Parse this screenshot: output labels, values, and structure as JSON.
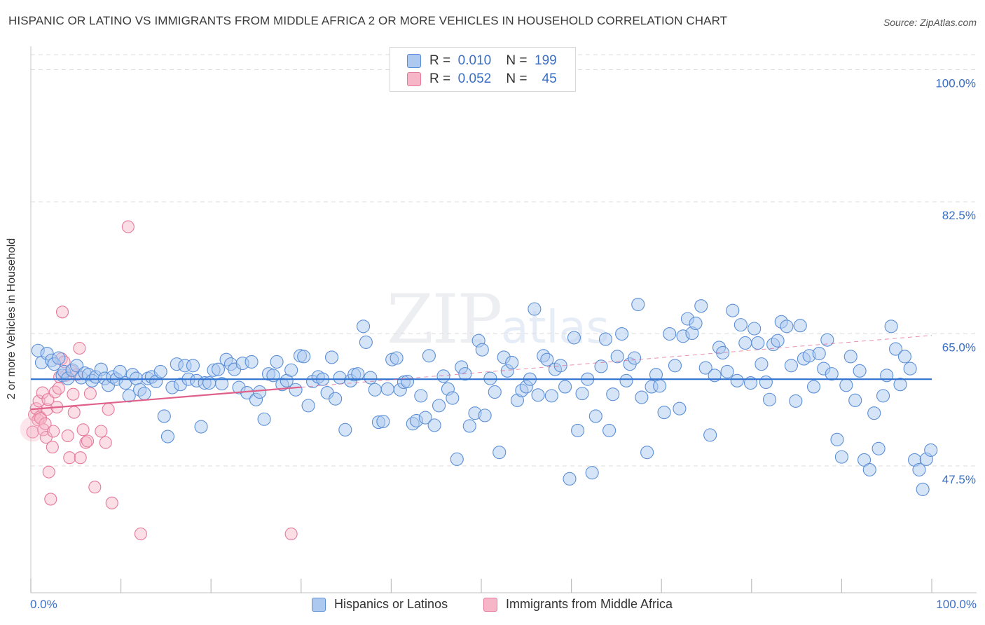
{
  "header": {
    "title": "HISPANIC OR LATINO VS IMMIGRANTS FROM MIDDLE AFRICA 2 OR MORE VEHICLES IN HOUSEHOLD CORRELATION CHART",
    "source": "Source: ZipAtlas.com"
  },
  "watermark": {
    "zip": "ZIP",
    "atlas": "atlas"
  },
  "legend": {
    "rows": [
      {
        "r_label": "R =",
        "r_value": "0.010",
        "n_label": "N =",
        "n_value": "199"
      },
      {
        "r_label": "R =",
        "r_value": "0.052",
        "n_label": "N =",
        "n_value": "45"
      }
    ]
  },
  "colors": {
    "blue_fill": "#aec9ef",
    "blue_stroke": "#5b8fd6",
    "blue_line": "#2f72d0",
    "pink_fill": "#f6b6c8",
    "pink_stroke": "#e57a9b",
    "pink_line": "#e0608a",
    "grid": "#dcdcdc",
    "axis_text": "#3a6fc4"
  },
  "chart_data": {
    "type": "scatter",
    "title": "HISPANIC OR LATINO VS IMMIGRANTS FROM MIDDLE AFRICA 2 OR MORE VEHICLES IN HOUSEHOLD CORRELATION CHART",
    "xlabel": "",
    "ylabel": "2 or more Vehicles in Household",
    "xlim": [
      0,
      100
    ],
    "ylim": [
      30.7,
      102
    ],
    "x_tick_labels": [
      "0.0%",
      "100.0%"
    ],
    "y_ticks": [
      47.5,
      65.0,
      82.5,
      100.0
    ],
    "y_tick_labels": [
      "47.5%",
      "65.0%",
      "82.5%",
      "100.0%"
    ],
    "grid": true,
    "legend_position": "top-center",
    "series": [
      {
        "name": "Hispanics or Latinos",
        "r": 0.01,
        "n": 199,
        "trend": {
          "x": [
            0,
            100
          ],
          "y": [
            59.0,
            59.0
          ],
          "dashed_from": null
        },
        "points": [
          [
            0.8,
            62.8
          ],
          [
            1.2,
            61.2
          ],
          [
            1.8,
            62.4
          ],
          [
            2.3,
            61.5
          ],
          [
            2.6,
            61.0
          ],
          [
            3.1,
            61.8
          ],
          [
            3.5,
            59.5
          ],
          [
            3.7,
            60.0
          ],
          [
            4.1,
            59.1
          ],
          [
            4.6,
            60.2
          ],
          [
            5.1,
            60.8
          ],
          [
            5.6,
            59.2
          ],
          [
            6.0,
            59.8
          ],
          [
            6.4,
            59.6
          ],
          [
            6.8,
            58.8
          ],
          [
            7.2,
            59.3
          ],
          [
            7.8,
            60.3
          ],
          [
            8.2,
            59.1
          ],
          [
            8.6,
            58.2
          ],
          [
            9.1,
            59.3
          ],
          [
            9.5,
            59.0
          ],
          [
            9.9,
            60.0
          ],
          [
            10.5,
            58.5
          ],
          [
            10.9,
            56.8
          ],
          [
            11.3,
            59.6
          ],
          [
            11.7,
            59.1
          ],
          [
            12.1,
            57.6
          ],
          [
            12.6,
            57.1
          ],
          [
            13.0,
            59.1
          ],
          [
            13.4,
            59.3
          ],
          [
            13.9,
            58.7
          ],
          [
            14.4,
            60.0
          ],
          [
            14.8,
            54.1
          ],
          [
            15.2,
            51.4
          ],
          [
            15.7,
            57.9
          ],
          [
            16.2,
            61.0
          ],
          [
            16.6,
            58.3
          ],
          [
            17.1,
            60.8
          ],
          [
            17.5,
            59.0
          ],
          [
            18.0,
            60.8
          ],
          [
            18.4,
            58.8
          ],
          [
            18.9,
            52.7
          ],
          [
            19.3,
            58.5
          ],
          [
            19.8,
            58.5
          ],
          [
            20.3,
            60.2
          ],
          [
            20.8,
            60.3
          ],
          [
            21.2,
            58.4
          ],
          [
            21.7,
            61.6
          ],
          [
            22.2,
            61.0
          ],
          [
            22.6,
            60.3
          ],
          [
            23.1,
            57.9
          ],
          [
            23.5,
            61.1
          ],
          [
            24.0,
            57.2
          ],
          [
            24.5,
            61.3
          ],
          [
            25.0,
            56.3
          ],
          [
            25.4,
            57.3
          ],
          [
            25.9,
            53.7
          ],
          [
            26.4,
            59.7
          ],
          [
            26.9,
            59.5
          ],
          [
            27.3,
            61.3
          ],
          [
            27.9,
            58.3
          ],
          [
            28.4,
            58.8
          ],
          [
            28.9,
            60.2
          ],
          [
            29.4,
            57.6
          ],
          [
            29.9,
            62.1
          ],
          [
            30.3,
            62.0
          ],
          [
            30.8,
            55.5
          ],
          [
            31.3,
            58.7
          ],
          [
            31.9,
            59.3
          ],
          [
            32.4,
            59.0
          ],
          [
            32.9,
            57.2
          ],
          [
            33.4,
            61.9
          ],
          [
            33.8,
            56.4
          ],
          [
            34.3,
            59.2
          ],
          [
            34.9,
            52.3
          ],
          [
            35.5,
            58.8
          ],
          [
            35.9,
            59.6
          ],
          [
            36.3,
            59.7
          ],
          [
            36.9,
            66.0
          ],
          [
            37.2,
            63.9
          ],
          [
            37.7,
            59.2
          ],
          [
            38.2,
            57.6
          ],
          [
            38.6,
            53.3
          ],
          [
            39.1,
            53.4
          ],
          [
            39.6,
            57.7
          ],
          [
            40.1,
            61.6
          ],
          [
            40.6,
            61.8
          ],
          [
            41.0,
            57.6
          ],
          [
            41.4,
            58.6
          ],
          [
            41.8,
            58.7
          ],
          [
            42.4,
            53.1
          ],
          [
            42.8,
            53.5
          ],
          [
            43.3,
            56.8
          ],
          [
            43.8,
            53.9
          ],
          [
            44.2,
            62.1
          ],
          [
            44.8,
            52.9
          ],
          [
            45.3,
            55.5
          ],
          [
            45.8,
            59.4
          ],
          [
            46.3,
            57.7
          ],
          [
            46.8,
            56.5
          ],
          [
            47.3,
            48.4
          ],
          [
            47.8,
            60.6
          ],
          [
            48.2,
            59.7
          ],
          [
            48.7,
            52.8
          ],
          [
            49.3,
            54.5
          ],
          [
            49.7,
            64.1
          ],
          [
            50.1,
            62.9
          ],
          [
            50.4,
            54.2
          ],
          [
            51.0,
            59.1
          ],
          [
            51.5,
            57.3
          ],
          [
            52.0,
            49.3
          ],
          [
            52.5,
            61.9
          ],
          [
            52.9,
            60.1
          ],
          [
            53.4,
            61.2
          ],
          [
            54.0,
            56.2
          ],
          [
            54.5,
            57.5
          ],
          [
            55.0,
            58.0
          ],
          [
            55.4,
            59.0
          ],
          [
            55.9,
            68.3
          ],
          [
            56.3,
            56.9
          ],
          [
            56.9,
            62.1
          ],
          [
            57.3,
            61.6
          ],
          [
            57.8,
            56.8
          ],
          [
            58.2,
            60.3
          ],
          [
            58.8,
            60.8
          ],
          [
            59.3,
            58.0
          ],
          [
            59.8,
            45.8
          ],
          [
            60.3,
            64.5
          ],
          [
            60.7,
            52.2
          ],
          [
            61.2,
            57.1
          ],
          [
            61.8,
            59.0
          ],
          [
            62.3,
            46.6
          ],
          [
            62.7,
            54.1
          ],
          [
            63.3,
            60.7
          ],
          [
            63.8,
            64.3
          ],
          [
            64.2,
            52.2
          ],
          [
            64.6,
            57.0
          ],
          [
            65.1,
            62.0
          ],
          [
            65.6,
            65.0
          ],
          [
            66.1,
            58.8
          ],
          [
            66.5,
            61.0
          ],
          [
            67.0,
            61.8
          ],
          [
            67.4,
            68.9
          ],
          [
            67.8,
            56.6
          ],
          [
            68.4,
            49.3
          ],
          [
            68.9,
            58.0
          ],
          [
            69.4,
            59.6
          ],
          [
            69.8,
            58.1
          ],
          [
            70.3,
            54.6
          ],
          [
            70.9,
            65.0
          ],
          [
            71.5,
            60.8
          ],
          [
            72.0,
            55.1
          ],
          [
            72.4,
            64.7
          ],
          [
            72.9,
            67.0
          ],
          [
            73.4,
            65.1
          ],
          [
            73.8,
            66.4
          ],
          [
            74.4,
            68.7
          ],
          [
            74.9,
            60.5
          ],
          [
            75.4,
            51.6
          ],
          [
            75.9,
            59.5
          ],
          [
            76.4,
            63.2
          ],
          [
            76.8,
            62.5
          ],
          [
            77.3,
            60.0
          ],
          [
            77.9,
            68.1
          ],
          [
            78.4,
            58.8
          ],
          [
            78.8,
            66.2
          ],
          [
            79.3,
            63.8
          ],
          [
            79.9,
            58.5
          ],
          [
            80.3,
            65.7
          ],
          [
            80.7,
            63.8
          ],
          [
            81.1,
            61.0
          ],
          [
            81.6,
            58.6
          ],
          [
            82.0,
            56.3
          ],
          [
            82.4,
            63.6
          ],
          [
            82.9,
            64.1
          ],
          [
            83.3,
            66.6
          ],
          [
            83.9,
            66.0
          ],
          [
            84.4,
            60.8
          ],
          [
            84.9,
            56.1
          ],
          [
            85.4,
            66.1
          ],
          [
            85.8,
            61.7
          ],
          [
            86.4,
            62.1
          ],
          [
            86.9,
            58.0
          ],
          [
            87.5,
            62.4
          ],
          [
            88.0,
            60.4
          ],
          [
            88.4,
            64.2
          ],
          [
            88.9,
            59.7
          ],
          [
            89.5,
            51.0
          ],
          [
            90.0,
            48.7
          ],
          [
            90.5,
            58.2
          ],
          [
            91.0,
            62.0
          ],
          [
            91.5,
            56.2
          ],
          [
            92.0,
            60.1
          ],
          [
            92.5,
            48.3
          ],
          [
            93.1,
            47.0
          ],
          [
            93.6,
            54.5
          ],
          [
            94.1,
            49.8
          ],
          [
            94.6,
            56.8
          ],
          [
            95.0,
            59.5
          ],
          [
            95.5,
            66.0
          ],
          [
            96.0,
            63.0
          ],
          [
            96.5,
            58.3
          ],
          [
            97.0,
            62.0
          ],
          [
            97.6,
            60.4
          ],
          [
            98.1,
            48.3
          ],
          [
            98.6,
            47.0
          ],
          [
            99.0,
            44.4
          ],
          [
            99.4,
            48.4
          ],
          [
            99.9,
            49.6
          ]
        ]
      },
      {
        "name": "Immigrants from Middle Africa",
        "r": 0.052,
        "n": 45,
        "trend": {
          "x": [
            0,
            100
          ],
          "y": [
            55.0,
            64.8
          ],
          "solid_until_x": 30,
          "dashed_after": true
        },
        "points": [
          [
            0.2,
            52.0
          ],
          [
            0.4,
            54.3
          ],
          [
            0.6,
            55.1
          ],
          [
            0.8,
            53.6
          ],
          [
            0.9,
            56.1
          ],
          [
            1.0,
            54.0
          ],
          [
            1.1,
            53.8
          ],
          [
            1.3,
            57.2
          ],
          [
            1.4,
            52.3
          ],
          [
            1.6,
            53.1
          ],
          [
            1.7,
            51.3
          ],
          [
            1.8,
            55.0
          ],
          [
            1.9,
            56.3
          ],
          [
            2.0,
            46.7
          ],
          [
            2.2,
            43.1
          ],
          [
            2.4,
            50.0
          ],
          [
            2.5,
            52.1
          ],
          [
            2.7,
            57.3
          ],
          [
            2.9,
            55.3
          ],
          [
            3.1,
            57.8
          ],
          [
            3.2,
            59.3
          ],
          [
            3.4,
            61.7
          ],
          [
            3.5,
            67.9
          ],
          [
            3.7,
            61.3
          ],
          [
            3.9,
            59.5
          ],
          [
            4.1,
            51.5
          ],
          [
            4.3,
            48.6
          ],
          [
            4.5,
            60.1
          ],
          [
            4.7,
            57.0
          ],
          [
            4.8,
            54.6
          ],
          [
            5.1,
            59.6
          ],
          [
            5.4,
            63.1
          ],
          [
            5.5,
            48.6
          ],
          [
            5.8,
            52.3
          ],
          [
            6.1,
            50.6
          ],
          [
            6.3,
            50.8
          ],
          [
            6.6,
            57.1
          ],
          [
            7.1,
            44.7
          ],
          [
            7.8,
            52.1
          ],
          [
            8.3,
            50.6
          ],
          [
            8.6,
            55.0
          ],
          [
            9.0,
            42.6
          ],
          [
            12.2,
            38.5
          ],
          [
            28.9,
            38.5
          ],
          [
            10.8,
            79.2
          ]
        ]
      }
    ]
  },
  "bottom_legend": {
    "items": [
      {
        "label": "Hispanics or Latinos"
      },
      {
        "label": "Immigrants from Middle Africa"
      }
    ]
  }
}
